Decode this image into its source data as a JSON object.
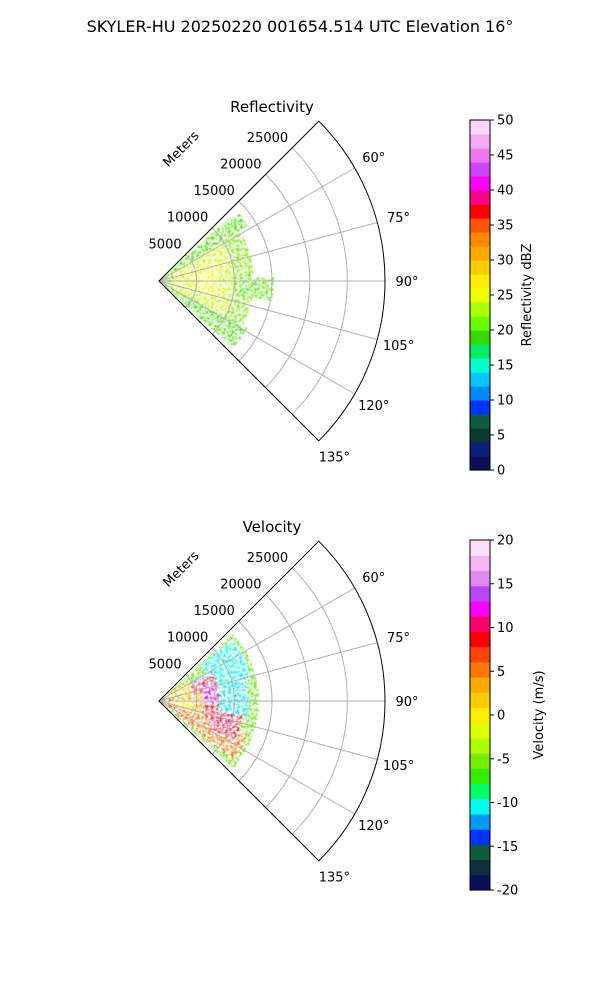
{
  "suptitle": "SKYLER-HU  20250220  001654.514 UTC Elevation 16°",
  "colors": {
    "background": "#ffffff",
    "grid": "#b0b0b0",
    "axis": "#000000"
  },
  "chart_data": [
    {
      "type": "heatmap",
      "projection": "polar-sector",
      "title": "Reflectivity",
      "radial_label": "Meters",
      "r_ticks": [
        5000,
        10000,
        15000,
        20000,
        25000
      ],
      "r_max": 30000,
      "theta_ticks": [
        "60°",
        "75°",
        "90°",
        "105°",
        "120°",
        "135°"
      ],
      "theta_range_deg": [
        45,
        135
      ],
      "colorbar": {
        "label": "Reflectivity dBZ",
        "ticks": [
          0,
          5,
          10,
          15,
          20,
          25,
          30,
          35,
          40,
          45,
          50
        ],
        "range": [
          0,
          50
        ],
        "colors": [
          "#0a0f5a",
          "#0b1f7a",
          "#0a3a2f",
          "#0d5a3c",
          "#0033ff",
          "#0088ff",
          "#00c8ff",
          "#00ffcc",
          "#00ee66",
          "#33dd00",
          "#66ff00",
          "#aaff00",
          "#eeff00",
          "#ffee00",
          "#ffcc00",
          "#ffaa00",
          "#ff8800",
          "#ff5500",
          "#ff0000",
          "#ff0088",
          "#ff00ff",
          "#cc44ff",
          "#ee77ee",
          "#f5aaf5",
          "#fbd5fb"
        ]
      }
    },
    {
      "type": "heatmap",
      "projection": "polar-sector",
      "title": "Velocity",
      "radial_label": "Meters",
      "r_ticks": [
        5000,
        10000,
        15000,
        20000,
        25000
      ],
      "r_max": 30000,
      "theta_ticks": [
        "60°",
        "75°",
        "90°",
        "105°",
        "120°",
        "135°"
      ],
      "theta_range_deg": [
        45,
        135
      ],
      "colorbar": {
        "label": "Velocity (m/s)",
        "ticks": [
          -20,
          -15,
          -10,
          -5,
          0,
          5,
          10,
          15,
          20
        ],
        "range": [
          -20,
          20
        ],
        "colors": [
          "#0a0f5a",
          "#0b2f3f",
          "#0d5a3c",
          "#0033ff",
          "#0099ff",
          "#00ffee",
          "#00ff66",
          "#33ee00",
          "#77ee00",
          "#aaff00",
          "#ddff00",
          "#ffee00",
          "#ffcc00",
          "#ffaa00",
          "#ff7700",
          "#ff4400",
          "#ff0000",
          "#ff0066",
          "#ff00ff",
          "#bb44ff",
          "#dd88ee",
          "#f5b5f5",
          "#fbe0fb"
        ]
      }
    }
  ]
}
